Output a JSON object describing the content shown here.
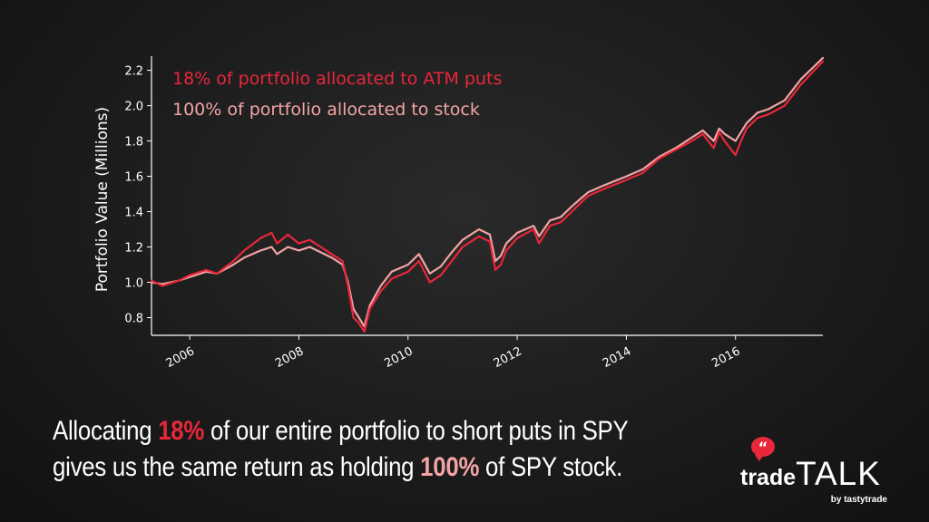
{
  "chart_data": {
    "type": "line",
    "title": "",
    "xlabel": "",
    "ylabel": "Portfolio Value (Millions)",
    "xlim": [
      2005.3,
      2017.6
    ],
    "ylim": [
      0.7,
      2.28
    ],
    "grid": false,
    "legend_position": "top-left",
    "x_ticks": [
      2006,
      2008,
      2010,
      2012,
      2014,
      2016
    ],
    "x_tick_labels": [
      "2006",
      "2008",
      "2010",
      "2012",
      "2014",
      "2016"
    ],
    "y_ticks": [
      0.8,
      1.0,
      1.2,
      1.4,
      1.6,
      1.8,
      2.0,
      2.2
    ],
    "y_tick_labels": [
      "0.8",
      "1.0",
      "1.2",
      "1.4",
      "1.6",
      "1.8",
      "2.0",
      "2.2"
    ],
    "series": [
      {
        "name": "18% of portfolio allocated to ATM puts",
        "color": "#e8273a",
        "x": [
          2005.3,
          2005.5,
          2005.8,
          2006.0,
          2006.3,
          2006.5,
          2006.8,
          2007.0,
          2007.3,
          2007.5,
          2007.6,
          2007.8,
          2008.0,
          2008.2,
          2008.4,
          2008.6,
          2008.8,
          2008.9,
          2009.0,
          2009.1,
          2009.2,
          2009.3,
          2009.5,
          2009.7,
          2010.0,
          2010.2,
          2010.4,
          2010.6,
          2010.8,
          2011.0,
          2011.3,
          2011.5,
          2011.6,
          2011.7,
          2011.8,
          2012.0,
          2012.3,
          2012.4,
          2012.6,
          2012.8,
          2013.0,
          2013.3,
          2013.6,
          2014.0,
          2014.3,
          2014.6,
          2014.9,
          2015.2,
          2015.4,
          2015.6,
          2015.7,
          2015.8,
          2016.0,
          2016.1,
          2016.2,
          2016.4,
          2016.6,
          2016.9,
          2017.2,
          2017.6
        ],
        "values": [
          1.01,
          0.98,
          1.01,
          1.04,
          1.07,
          1.05,
          1.12,
          1.18,
          1.25,
          1.28,
          1.22,
          1.27,
          1.22,
          1.24,
          1.2,
          1.16,
          1.12,
          0.98,
          0.8,
          0.77,
          0.72,
          0.85,
          0.95,
          1.02,
          1.06,
          1.12,
          1.0,
          1.04,
          1.12,
          1.2,
          1.26,
          1.23,
          1.07,
          1.1,
          1.18,
          1.25,
          1.3,
          1.22,
          1.32,
          1.34,
          1.4,
          1.49,
          1.53,
          1.58,
          1.62,
          1.7,
          1.75,
          1.8,
          1.84,
          1.76,
          1.85,
          1.8,
          1.72,
          1.8,
          1.87,
          1.93,
          1.95,
          2.0,
          2.12,
          2.25
        ]
      },
      {
        "name": "100% of portfolio allocated to stock",
        "color": "#f2a4a4",
        "x": [
          2005.3,
          2005.5,
          2005.8,
          2006.0,
          2006.3,
          2006.5,
          2006.8,
          2007.0,
          2007.3,
          2007.5,
          2007.6,
          2007.8,
          2008.0,
          2008.2,
          2008.4,
          2008.6,
          2008.8,
          2008.9,
          2009.0,
          2009.1,
          2009.2,
          2009.3,
          2009.5,
          2009.7,
          2010.0,
          2010.2,
          2010.4,
          2010.6,
          2010.8,
          2011.0,
          2011.3,
          2011.5,
          2011.6,
          2011.7,
          2011.8,
          2012.0,
          2012.3,
          2012.4,
          2012.6,
          2012.8,
          2013.0,
          2013.3,
          2013.6,
          2014.0,
          2014.3,
          2014.6,
          2014.9,
          2015.2,
          2015.4,
          2015.6,
          2015.7,
          2015.8,
          2016.0,
          2016.1,
          2016.2,
          2016.4,
          2016.6,
          2016.9,
          2017.2,
          2017.6
        ],
        "values": [
          1.0,
          0.99,
          1.01,
          1.03,
          1.06,
          1.05,
          1.1,
          1.14,
          1.18,
          1.2,
          1.16,
          1.2,
          1.18,
          1.2,
          1.17,
          1.14,
          1.1,
          1.0,
          0.85,
          0.8,
          0.75,
          0.87,
          0.98,
          1.06,
          1.1,
          1.16,
          1.05,
          1.09,
          1.17,
          1.24,
          1.3,
          1.27,
          1.12,
          1.15,
          1.22,
          1.28,
          1.32,
          1.26,
          1.35,
          1.37,
          1.43,
          1.51,
          1.55,
          1.6,
          1.64,
          1.71,
          1.76,
          1.82,
          1.86,
          1.8,
          1.87,
          1.84,
          1.8,
          1.85,
          1.9,
          1.96,
          1.98,
          2.03,
          2.15,
          2.27
        ]
      }
    ]
  },
  "caption": {
    "line1_pre": "Allocating ",
    "line1_highlight": "18%",
    "line1_post": " of our entire portfolio to short puts in SPY",
    "line2_pre": "gives us the same return as holding ",
    "line2_highlight": "100%",
    "line2_post": " of SPY stock."
  },
  "logo": {
    "trade": "trade",
    "talk": "TALK",
    "byline": "by tastytrade",
    "bubble_glyph": "“"
  }
}
